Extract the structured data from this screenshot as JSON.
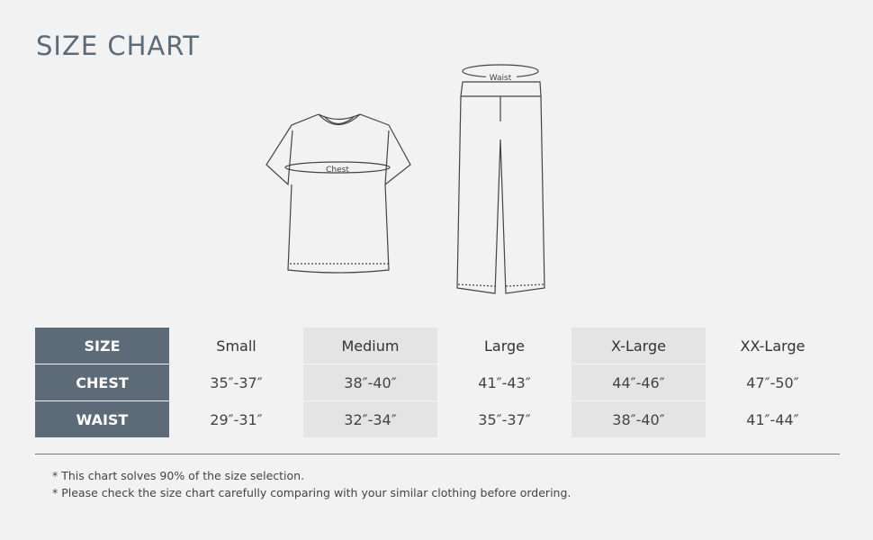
{
  "title": "SIZE CHART",
  "diagram_labels": {
    "chest": "Chest",
    "waist": "Waist"
  },
  "table": {
    "row_headers": [
      "SIZE",
      "CHEST",
      "WAIST"
    ],
    "sizes": [
      "Small",
      "Medium",
      "Large",
      "X-Large",
      "XX-Large"
    ],
    "chest": [
      "35″-37″",
      "38″-40″",
      "41″-43″",
      "44″-46″",
      "47″-50″"
    ],
    "waist": [
      "29″-31″",
      "32″-34″",
      "35″-37″",
      "38″-40″",
      "41″-44″"
    ]
  },
  "notes": [
    "* This chart solves 90% of the size selection.",
    "* Please check the size chart carefully comparing with your similar clothing before ordering."
  ],
  "colors": {
    "header": "#5d6b78",
    "alt_column": "#e4e4e4",
    "background": "#f2f2f2"
  }
}
